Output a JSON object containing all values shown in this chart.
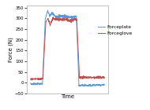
{
  "title": "",
  "xlabel": "Time",
  "ylabel": "Force (N)",
  "ylim": [
    -50,
    360
  ],
  "yticks": [
    -50,
    0,
    50,
    100,
    150,
    200,
    250,
    300,
    350
  ],
  "bg_color": "#ffffff",
  "plot_bg": "#ffffff",
  "line_blue": "#5B9BD5",
  "line_red": "#C0504D",
  "legend_labels": [
    "Forceplate",
    "Forceglove"
  ],
  "figsize": [
    1.9,
    1.4
  ],
  "dpi": 100
}
